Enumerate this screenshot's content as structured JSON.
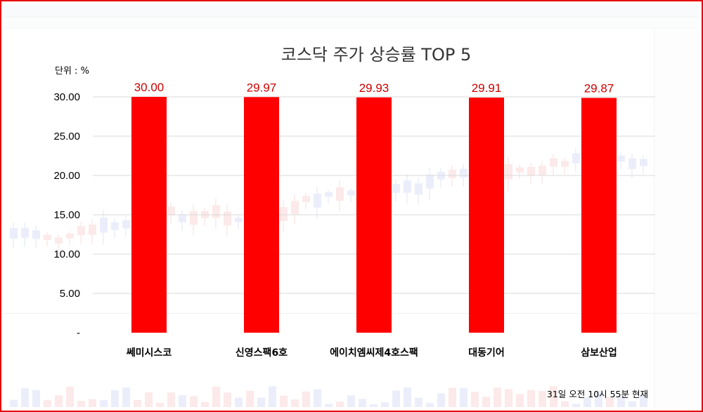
{
  "chart_data": {
    "type": "bar",
    "title": "코스닥 주가 상승률 TOP 5",
    "unit_label": "단위 : %",
    "categories": [
      "쎄미시스코",
      "신영스팩6호",
      "에이치엠씨제4호스팩",
      "대동기어",
      "삼보산업"
    ],
    "values": [
      30.0,
      29.97,
      29.93,
      29.91,
      29.87
    ],
    "data_labels": [
      "30.00",
      "29.97",
      "29.93",
      "29.91",
      "29.87"
    ],
    "y_ticks": [
      0,
      5,
      10,
      15,
      20,
      25,
      30
    ],
    "y_tick_labels": [
      "-",
      "5.00",
      "10.00",
      "15.00",
      "20.00",
      "25.00",
      "30.00"
    ],
    "ylim": [
      0,
      30
    ],
    "grid": true,
    "bar_color": "#ff0000",
    "label_color": "#cc0000",
    "xlabel": "",
    "ylabel": ""
  },
  "footnote": "31일 오전 10시 55분 현재",
  "colors": {
    "border": "#e60000",
    "gridline": "#d9d9d9"
  }
}
